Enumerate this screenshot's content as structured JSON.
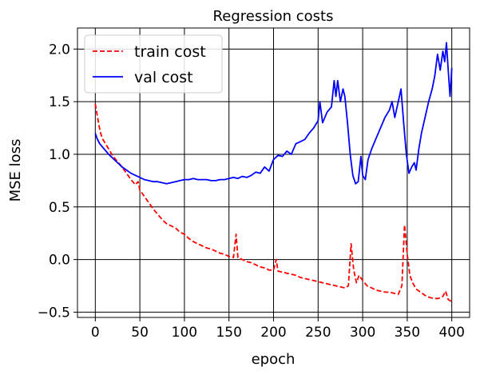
{
  "chart_data": {
    "type": "line",
    "title": "Regression costs",
    "xlabel": "epoch",
    "ylabel": "MSE loss",
    "xlim": [
      -20,
      420
    ],
    "ylim": [
      -0.55,
      2.2
    ],
    "xticks": [
      0,
      50,
      100,
      150,
      200,
      250,
      300,
      350,
      400
    ],
    "yticks": [
      -0.5,
      0.0,
      0.5,
      1.0,
      1.5,
      2.0
    ],
    "ytick_labels": [
      "−0.5",
      "0.0",
      "0.5",
      "1.0",
      "1.5",
      "2.0"
    ],
    "grid": true,
    "legend_position": "top-left",
    "series": [
      {
        "name": "train cost",
        "color": "#ff0000",
        "style": "dashed",
        "points": [
          [
            0,
            1.48
          ],
          [
            2,
            1.38
          ],
          [
            4,
            1.28
          ],
          [
            6,
            1.2
          ],
          [
            8,
            1.15
          ],
          [
            10,
            1.12
          ],
          [
            15,
            1.05
          ],
          [
            20,
            0.98
          ],
          [
            25,
            0.93
          ],
          [
            30,
            0.88
          ],
          [
            35,
            0.82
          ],
          [
            40,
            0.76
          ],
          [
            45,
            0.71
          ],
          [
            48,
            0.74
          ],
          [
            50,
            0.66
          ],
          [
            55,
            0.6
          ],
          [
            60,
            0.54
          ],
          [
            65,
            0.48
          ],
          [
            70,
            0.43
          ],
          [
            75,
            0.38
          ],
          [
            80,
            0.34
          ],
          [
            85,
            0.32
          ],
          [
            90,
            0.3
          ],
          [
            95,
            0.26
          ],
          [
            100,
            0.24
          ],
          [
            105,
            0.2
          ],
          [
            110,
            0.17
          ],
          [
            115,
            0.15
          ],
          [
            120,
            0.13
          ],
          [
            125,
            0.11
          ],
          [
            130,
            0.1
          ],
          [
            135,
            0.08
          ],
          [
            140,
            0.06
          ],
          [
            145,
            0.05
          ],
          [
            150,
            0.03
          ],
          [
            155,
            0.02
          ],
          [
            158,
            0.24
          ],
          [
            160,
            0.02
          ],
          [
            165,
            0.0
          ],
          [
            170,
            -0.02
          ],
          [
            175,
            -0.03
          ],
          [
            180,
            -0.05
          ],
          [
            185,
            -0.07
          ],
          [
            190,
            -0.08
          ],
          [
            195,
            -0.1
          ],
          [
            200,
            -0.1
          ],
          [
            203,
            0.0
          ],
          [
            205,
            -0.11
          ],
          [
            210,
            -0.12
          ],
          [
            215,
            -0.13
          ],
          [
            220,
            -0.14
          ],
          [
            225,
            -0.15
          ],
          [
            230,
            -0.17
          ],
          [
            235,
            -0.18
          ],
          [
            240,
            -0.19
          ],
          [
            245,
            -0.2
          ],
          [
            250,
            -0.21
          ],
          [
            255,
            -0.22
          ],
          [
            260,
            -0.23
          ],
          [
            265,
            -0.24
          ],
          [
            270,
            -0.25
          ],
          [
            275,
            -0.26
          ],
          [
            280,
            -0.27
          ],
          [
            284,
            -0.25
          ],
          [
            287,
            0.15
          ],
          [
            290,
            -0.1
          ],
          [
            293,
            -0.22
          ],
          [
            296,
            -0.15
          ],
          [
            300,
            -0.2
          ],
          [
            305,
            -0.25
          ],
          [
            310,
            -0.27
          ],
          [
            315,
            -0.29
          ],
          [
            320,
            -0.3
          ],
          [
            325,
            -0.31
          ],
          [
            330,
            -0.31
          ],
          [
            335,
            -0.32
          ],
          [
            340,
            -0.33
          ],
          [
            344,
            -0.25
          ],
          [
            347,
            0.33
          ],
          [
            350,
            0.05
          ],
          [
            353,
            -0.15
          ],
          [
            356,
            -0.22
          ],
          [
            360,
            -0.28
          ],
          [
            365,
            -0.31
          ],
          [
            370,
            -0.34
          ],
          [
            375,
            -0.36
          ],
          [
            380,
            -0.37
          ],
          [
            385,
            -0.37
          ],
          [
            390,
            -0.35
          ],
          [
            393,
            -0.3
          ],
          [
            396,
            -0.38
          ],
          [
            400,
            -0.4
          ]
        ]
      },
      {
        "name": "val cost",
        "color": "#0000ff",
        "style": "solid",
        "points": [
          [
            0,
            1.2
          ],
          [
            2,
            1.15
          ],
          [
            5,
            1.1
          ],
          [
            10,
            1.05
          ],
          [
            15,
            1.0
          ],
          [
            20,
            0.96
          ],
          [
            25,
            0.92
          ],
          [
            30,
            0.88
          ],
          [
            35,
            0.85
          ],
          [
            40,
            0.82
          ],
          [
            45,
            0.8
          ],
          [
            50,
            0.78
          ],
          [
            55,
            0.76
          ],
          [
            60,
            0.75
          ],
          [
            65,
            0.74
          ],
          [
            70,
            0.74
          ],
          [
            75,
            0.73
          ],
          [
            80,
            0.72
          ],
          [
            85,
            0.73
          ],
          [
            90,
            0.74
          ],
          [
            95,
            0.75
          ],
          [
            100,
            0.76
          ],
          [
            105,
            0.76
          ],
          [
            110,
            0.77
          ],
          [
            115,
            0.76
          ],
          [
            120,
            0.76
          ],
          [
            125,
            0.76
          ],
          [
            130,
            0.75
          ],
          [
            135,
            0.75
          ],
          [
            140,
            0.76
          ],
          [
            145,
            0.76
          ],
          [
            150,
            0.77
          ],
          [
            155,
            0.78
          ],
          [
            160,
            0.77
          ],
          [
            165,
            0.79
          ],
          [
            170,
            0.78
          ],
          [
            175,
            0.8
          ],
          [
            180,
            0.83
          ],
          [
            185,
            0.82
          ],
          [
            190,
            0.88
          ],
          [
            195,
            0.84
          ],
          [
            200,
            0.95
          ],
          [
            205,
            0.99
          ],
          [
            210,
            0.98
          ],
          [
            215,
            1.03
          ],
          [
            220,
            1.0
          ],
          [
            225,
            1.1
          ],
          [
            230,
            1.12
          ],
          [
            235,
            1.14
          ],
          [
            240,
            1.2
          ],
          [
            245,
            1.25
          ],
          [
            250,
            1.32
          ],
          [
            252,
            1.5
          ],
          [
            255,
            1.3
          ],
          [
            260,
            1.4
          ],
          [
            265,
            1.45
          ],
          [
            268,
            1.7
          ],
          [
            270,
            1.55
          ],
          [
            272,
            1.7
          ],
          [
            275,
            1.5
          ],
          [
            278,
            1.62
          ],
          [
            280,
            1.55
          ],
          [
            283,
            1.3
          ],
          [
            286,
            1.0
          ],
          [
            289,
            0.8
          ],
          [
            292,
            0.72
          ],
          [
            295,
            0.74
          ],
          [
            298,
            0.98
          ],
          [
            300,
            0.8
          ],
          [
            303,
            0.76
          ],
          [
            306,
            0.95
          ],
          [
            310,
            1.05
          ],
          [
            315,
            1.15
          ],
          [
            320,
            1.25
          ],
          [
            325,
            1.35
          ],
          [
            330,
            1.42
          ],
          [
            333,
            1.5
          ],
          [
            336,
            1.35
          ],
          [
            340,
            1.5
          ],
          [
            343,
            1.62
          ],
          [
            346,
            1.3
          ],
          [
            349,
            1.0
          ],
          [
            352,
            0.82
          ],
          [
            355,
            0.88
          ],
          [
            358,
            0.92
          ],
          [
            360,
            0.85
          ],
          [
            363,
            1.05
          ],
          [
            366,
            1.2
          ],
          [
            370,
            1.35
          ],
          [
            374,
            1.5
          ],
          [
            378,
            1.62
          ],
          [
            381,
            1.75
          ],
          [
            384,
            1.95
          ],
          [
            387,
            1.8
          ],
          [
            390,
            1.98
          ],
          [
            392,
            1.88
          ],
          [
            394,
            2.06
          ],
          [
            396,
            1.8
          ],
          [
            398,
            1.55
          ],
          [
            400,
            1.82
          ]
        ]
      }
    ]
  }
}
